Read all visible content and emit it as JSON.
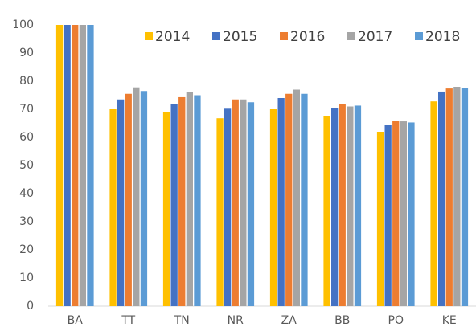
{
  "chart_data": {
    "type": "bar",
    "categories": [
      "BA",
      "TT",
      "TN",
      "NR",
      "ZA",
      "BB",
      "PO",
      "KE"
    ],
    "series": [
      {
        "name": "2014",
        "color": "#ffc000",
        "values": [
          100,
          70,
          69,
          66.8,
          70,
          67.7,
          62,
          72.8
        ]
      },
      {
        "name": "2015",
        "color": "#4472c4",
        "values": [
          100,
          73.5,
          72,
          70.2,
          74,
          70.3,
          64.5,
          76.3
        ]
      },
      {
        "name": "2016",
        "color": "#ed7d31",
        "values": [
          100,
          75.5,
          74.3,
          73.5,
          75.5,
          71.8,
          66,
          77.4
        ]
      },
      {
        "name": "2017",
        "color": "#a5a5a5",
        "values": [
          100,
          77.8,
          76.2,
          73.5,
          77,
          71,
          65.7,
          78
        ]
      },
      {
        "name": "2018",
        "color": "#5b9bd5",
        "values": [
          100,
          76.5,
          75,
          72.5,
          75.5,
          71.3,
          65.3,
          77.6
        ]
      }
    ],
    "ylim": [
      0,
      100
    ],
    "yticks": [
      0,
      10,
      20,
      30,
      40,
      50,
      60,
      70,
      80,
      90,
      100
    ],
    "grid": false,
    "legend": "top-right"
  }
}
